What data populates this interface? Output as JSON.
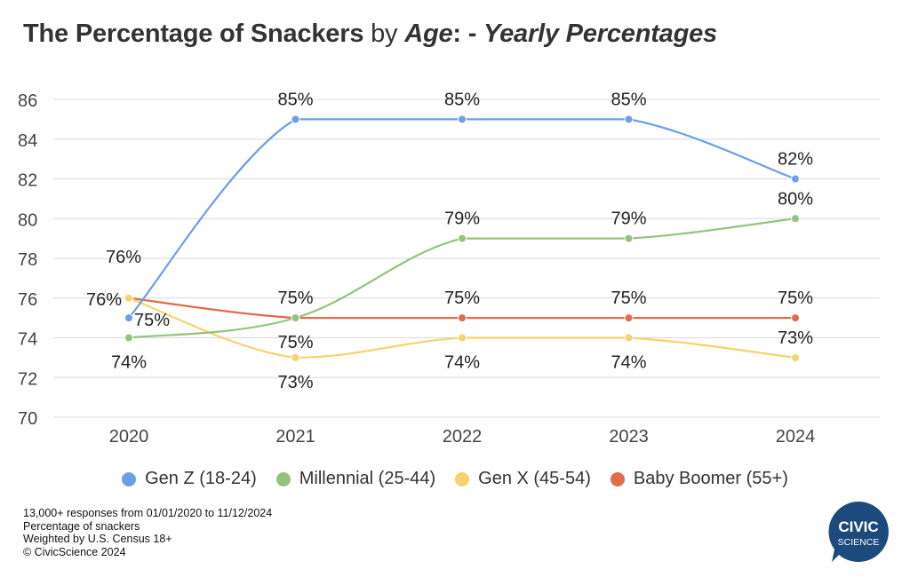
{
  "title": {
    "part1": "The Percentage of Snackers",
    "part2": " by ",
    "part3": "Age",
    "part4": ": - ",
    "part5": "Yearly Percentages"
  },
  "chart_data": {
    "type": "line",
    "title": "The Percentage of Snackers by Age: - Yearly Percentages",
    "x": [
      "2020",
      "2021",
      "2022",
      "2023",
      "2024"
    ],
    "ylim": [
      70,
      86
    ],
    "yticks": [
      70,
      72,
      74,
      76,
      78,
      80,
      82,
      84,
      86
    ],
    "grid": true,
    "legend_position": "bottom",
    "series": [
      {
        "name": "Gen Z (18-24)",
        "color": "#6d9eeb",
        "values": [
          75,
          85,
          85,
          85,
          82
        ],
        "labels": [
          "75%",
          "85%",
          "85%",
          "85%",
          "82%"
        ]
      },
      {
        "name": "Millennial (25-44)",
        "color": "#93c47d",
        "values": [
          74,
          75,
          79,
          79,
          80
        ],
        "labels": [
          "74%",
          "75%",
          "79%",
          "79%",
          "80%"
        ]
      },
      {
        "name": "Gen X (45-54)",
        "color": "#f6d36b",
        "values": [
          76,
          73,
          74,
          74,
          73
        ],
        "labels": [
          "76%",
          "73%",
          "74%",
          "74%",
          "73%"
        ]
      },
      {
        "name": "Baby Boomer (55+)",
        "color": "#e06c4c",
        "values": [
          76,
          75,
          75,
          75,
          75
        ],
        "labels": [
          "76%",
          "75%",
          "75%",
          "75%",
          "75%"
        ]
      }
    ]
  },
  "footnotes": [
    "13,000+ responses from 01/01/2020 to 11/12/2024",
    "Percentage of snackers",
    "Weighted by U.S. Census 18+",
    "© CivicScience 2024"
  ],
  "logo": {
    "line1": "CIVIC",
    "line2": "SCIENCE",
    "color": "#1c4a7d"
  }
}
